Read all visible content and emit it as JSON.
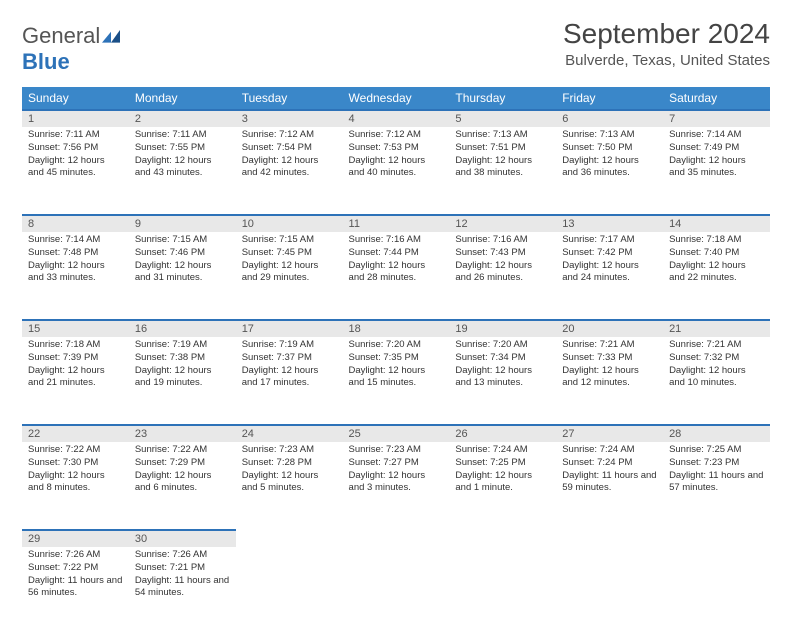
{
  "brand": {
    "name_first": "General",
    "name_second": "Blue"
  },
  "title": "September 2024",
  "location": "Bulverde, Texas, United States",
  "header_bg": "#3a87c9",
  "day_bg": "#e8e8e8",
  "border_color": "#2d72b8",
  "weekdays": [
    "Sunday",
    "Monday",
    "Tuesday",
    "Wednesday",
    "Thursday",
    "Friday",
    "Saturday"
  ],
  "weeks": [
    [
      {
        "n": "1",
        "sunrise": "7:11 AM",
        "sunset": "7:56 PM",
        "daylight": "12 hours and 45 minutes."
      },
      {
        "n": "2",
        "sunrise": "7:11 AM",
        "sunset": "7:55 PM",
        "daylight": "12 hours and 43 minutes."
      },
      {
        "n": "3",
        "sunrise": "7:12 AM",
        "sunset": "7:54 PM",
        "daylight": "12 hours and 42 minutes."
      },
      {
        "n": "4",
        "sunrise": "7:12 AM",
        "sunset": "7:53 PM",
        "daylight": "12 hours and 40 minutes."
      },
      {
        "n": "5",
        "sunrise": "7:13 AM",
        "sunset": "7:51 PM",
        "daylight": "12 hours and 38 minutes."
      },
      {
        "n": "6",
        "sunrise": "7:13 AM",
        "sunset": "7:50 PM",
        "daylight": "12 hours and 36 minutes."
      },
      {
        "n": "7",
        "sunrise": "7:14 AM",
        "sunset": "7:49 PM",
        "daylight": "12 hours and 35 minutes."
      }
    ],
    [
      {
        "n": "8",
        "sunrise": "7:14 AM",
        "sunset": "7:48 PM",
        "daylight": "12 hours and 33 minutes."
      },
      {
        "n": "9",
        "sunrise": "7:15 AM",
        "sunset": "7:46 PM",
        "daylight": "12 hours and 31 minutes."
      },
      {
        "n": "10",
        "sunrise": "7:15 AM",
        "sunset": "7:45 PM",
        "daylight": "12 hours and 29 minutes."
      },
      {
        "n": "11",
        "sunrise": "7:16 AM",
        "sunset": "7:44 PM",
        "daylight": "12 hours and 28 minutes."
      },
      {
        "n": "12",
        "sunrise": "7:16 AM",
        "sunset": "7:43 PM",
        "daylight": "12 hours and 26 minutes."
      },
      {
        "n": "13",
        "sunrise": "7:17 AM",
        "sunset": "7:42 PM",
        "daylight": "12 hours and 24 minutes."
      },
      {
        "n": "14",
        "sunrise": "7:18 AM",
        "sunset": "7:40 PM",
        "daylight": "12 hours and 22 minutes."
      }
    ],
    [
      {
        "n": "15",
        "sunrise": "7:18 AM",
        "sunset": "7:39 PM",
        "daylight": "12 hours and 21 minutes."
      },
      {
        "n": "16",
        "sunrise": "7:19 AM",
        "sunset": "7:38 PM",
        "daylight": "12 hours and 19 minutes."
      },
      {
        "n": "17",
        "sunrise": "7:19 AM",
        "sunset": "7:37 PM",
        "daylight": "12 hours and 17 minutes."
      },
      {
        "n": "18",
        "sunrise": "7:20 AM",
        "sunset": "7:35 PM",
        "daylight": "12 hours and 15 minutes."
      },
      {
        "n": "19",
        "sunrise": "7:20 AM",
        "sunset": "7:34 PM",
        "daylight": "12 hours and 13 minutes."
      },
      {
        "n": "20",
        "sunrise": "7:21 AM",
        "sunset": "7:33 PM",
        "daylight": "12 hours and 12 minutes."
      },
      {
        "n": "21",
        "sunrise": "7:21 AM",
        "sunset": "7:32 PM",
        "daylight": "12 hours and 10 minutes."
      }
    ],
    [
      {
        "n": "22",
        "sunrise": "7:22 AM",
        "sunset": "7:30 PM",
        "daylight": "12 hours and 8 minutes."
      },
      {
        "n": "23",
        "sunrise": "7:22 AM",
        "sunset": "7:29 PM",
        "daylight": "12 hours and 6 minutes."
      },
      {
        "n": "24",
        "sunrise": "7:23 AM",
        "sunset": "7:28 PM",
        "daylight": "12 hours and 5 minutes."
      },
      {
        "n": "25",
        "sunrise": "7:23 AM",
        "sunset": "7:27 PM",
        "daylight": "12 hours and 3 minutes."
      },
      {
        "n": "26",
        "sunrise": "7:24 AM",
        "sunset": "7:25 PM",
        "daylight": "12 hours and 1 minute."
      },
      {
        "n": "27",
        "sunrise": "7:24 AM",
        "sunset": "7:24 PM",
        "daylight": "11 hours and 59 minutes."
      },
      {
        "n": "28",
        "sunrise": "7:25 AM",
        "sunset": "7:23 PM",
        "daylight": "11 hours and 57 minutes."
      }
    ],
    [
      {
        "n": "29",
        "sunrise": "7:26 AM",
        "sunset": "7:22 PM",
        "daylight": "11 hours and 56 minutes."
      },
      {
        "n": "30",
        "sunrise": "7:26 AM",
        "sunset": "7:21 PM",
        "daylight": "11 hours and 54 minutes."
      },
      null,
      null,
      null,
      null,
      null
    ]
  ],
  "labels": {
    "sunrise": "Sunrise: ",
    "sunset": "Sunset: ",
    "daylight": "Daylight: "
  }
}
